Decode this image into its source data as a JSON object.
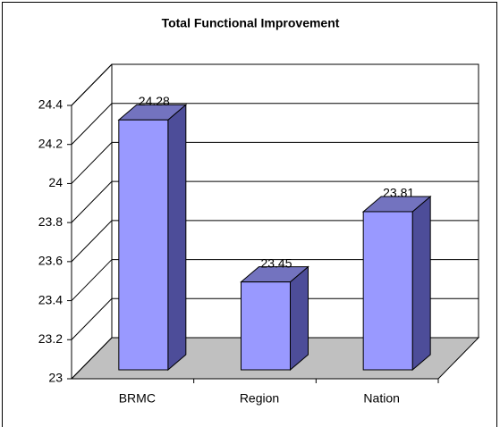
{
  "chart_data": {
    "type": "bar3d",
    "title": "Total Functional Improvement",
    "categories": [
      "BRMC",
      "Region",
      "Nation"
    ],
    "values": [
      24.28,
      23.45,
      23.81
    ],
    "value_labels": [
      "24.28",
      "23.45",
      "23.81"
    ],
    "color": "#9999ff",
    "ylim": [
      23,
      24.4
    ],
    "yticks": [
      23,
      23.2,
      23.4,
      23.6,
      23.8,
      24,
      24.2,
      24.4
    ],
    "grid": true
  }
}
